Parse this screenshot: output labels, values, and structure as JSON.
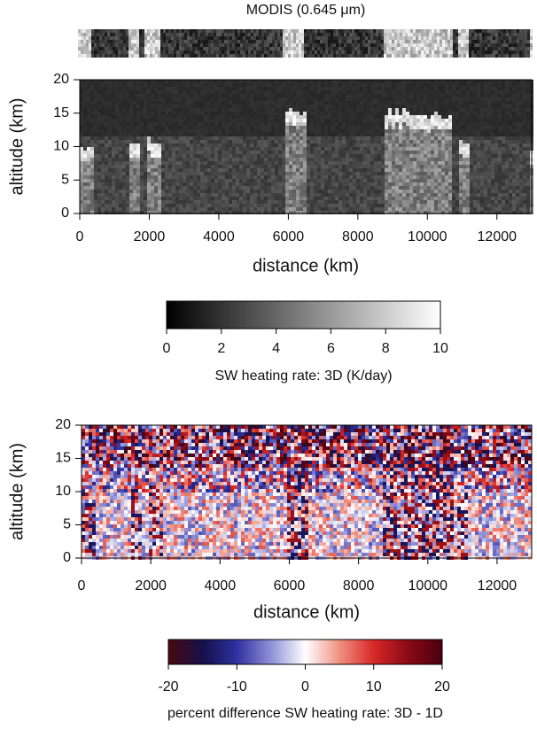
{
  "header": {
    "title": "MODIS (0.645 μm)"
  },
  "chart_data": [
    {
      "type": "heatmap",
      "xlabel": "distance (km)",
      "ylabel": "altitude (km)",
      "xlim": [
        0,
        13000
      ],
      "ylim": [
        0,
        20
      ],
      "xticks": [
        0,
        2000,
        4000,
        6000,
        8000,
        10000,
        12000
      ],
      "yticks": [
        0,
        5,
        10,
        15,
        20
      ],
      "colorbar": {
        "label": "SW heating rate: 3D (K/day)",
        "lim": [
          0,
          10
        ],
        "ticks": [
          0,
          2,
          4,
          6,
          8,
          10
        ],
        "colors": [
          "#000000",
          "#ffffff"
        ]
      }
    },
    {
      "type": "heatmap",
      "xlabel": "distance (km)",
      "ylabel": "altitude (km)",
      "xlim": [
        0,
        13000
      ],
      "ylim": [
        0,
        20
      ],
      "xticks": [
        0,
        2000,
        4000,
        6000,
        8000,
        10000,
        12000
      ],
      "yticks": [
        0,
        5,
        10,
        15,
        20
      ],
      "colorbar": {
        "label": "percent difference SW heating rate: 3D - 1D",
        "lim": [
          -20,
          20
        ],
        "ticks": [
          -20,
          -10,
          0,
          10,
          20
        ],
        "colors": [
          "#4a0810",
          "#15104a",
          "#3030a0",
          "#9090d8",
          "#ffffff",
          "#f09080",
          "#d82828",
          "#8a0a14",
          "#4a0010"
        ]
      }
    }
  ]
}
